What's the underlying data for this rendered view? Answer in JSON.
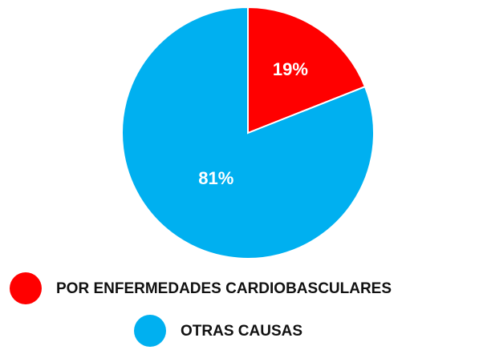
{
  "chart_data": {
    "type": "pie",
    "categories": [
      "POR ENFERMEDADES CARDIOBASCULARES",
      "OTRAS CAUSAS"
    ],
    "values": [
      19,
      81
    ],
    "value_labels": [
      "19%",
      "81%"
    ],
    "colors": [
      "#ff0000",
      "#00b0f0"
    ]
  }
}
